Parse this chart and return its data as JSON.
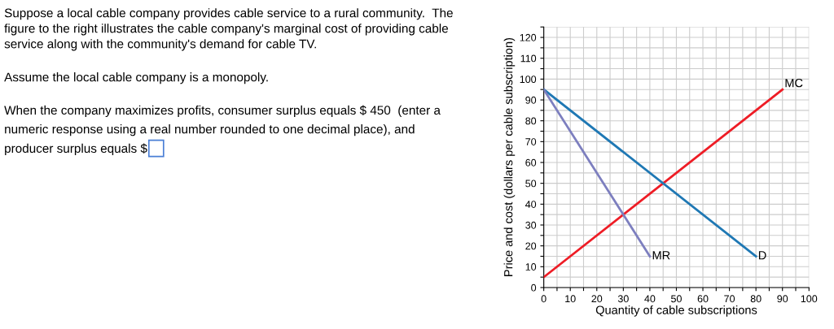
{
  "chart_data": {
    "type": "line",
    "xlabel": "Quantity of cable subscriptions",
    "ylabel": "Price and cost (dollars per cable subscription)",
    "series": [
      {
        "name": "MC",
        "color": "#ee1c25",
        "x": [
          0,
          90
        ],
        "values": [
          5,
          95
        ]
      },
      {
        "name": "D",
        "color": "#1f78b4",
        "x": [
          0,
          80
        ],
        "values": [
          95,
          15
        ]
      },
      {
        "name": "MR",
        "color": "#7d7fbf",
        "x": [
          0,
          40
        ],
        "values": [
          95,
          15
        ]
      }
    ],
    "xlim": [
      0,
      100
    ],
    "ylim": [
      0,
      125
    ],
    "xticks": [
      0,
      {
        "value": 5,
        "label": null
      },
      10,
      {
        "value": 15,
        "label": null
      },
      20,
      {
        "value": 25,
        "label": null
      },
      30,
      {
        "value": 35,
        "label": null
      },
      40,
      {
        "value": 45,
        "label": null
      },
      50,
      {
        "value": 55,
        "label": null
      },
      60,
      {
        "value": 65,
        "label": null
      },
      70,
      {
        "value": 75,
        "label": null
      },
      80,
      {
        "value": 85,
        "label": null
      },
      90,
      {
        "value": 95,
        "label": null
      },
      100
    ],
    "yticks": [
      0,
      {
        "value": 5,
        "label": null
      },
      10,
      {
        "value": 15,
        "label": null
      },
      20,
      {
        "value": 25,
        "label": null
      },
      30,
      {
        "value": 35,
        "label": null
      },
      40,
      {
        "value": 45,
        "label": null
      },
      50,
      {
        "value": 55,
        "label": null
      },
      60,
      {
        "value": 65,
        "label": null
      },
      70,
      {
        "value": 75,
        "label": null
      },
      80,
      {
        "value": 85,
        "label": null
      },
      90,
      {
        "value": 95,
        "label": null
      },
      100,
      {
        "value": 105,
        "label": null
      },
      110,
      {
        "value": 115,
        "label": null
      },
      120,
      {
        "value": 125,
        "label": null
      }
    ],
    "grid": true,
    "marker": "none",
    "line_style": "solid",
    "legend": false,
    "annotations": [
      "Suppose a local cable company provides cable service to a rural community.  The",
      "figure to the right illustrates the cable company's marginal cost of providing cable",
      "service along with the community's demand for cable TV.",
      "Assume the local cable company is a monopoly.",
      "When the company maximizes profits, consumer surplus equals $ 450  (enter a",
      "numeric response using a real number rounded to one decimal place), and",
      "producer surplus equals $"
    ]
  }
}
